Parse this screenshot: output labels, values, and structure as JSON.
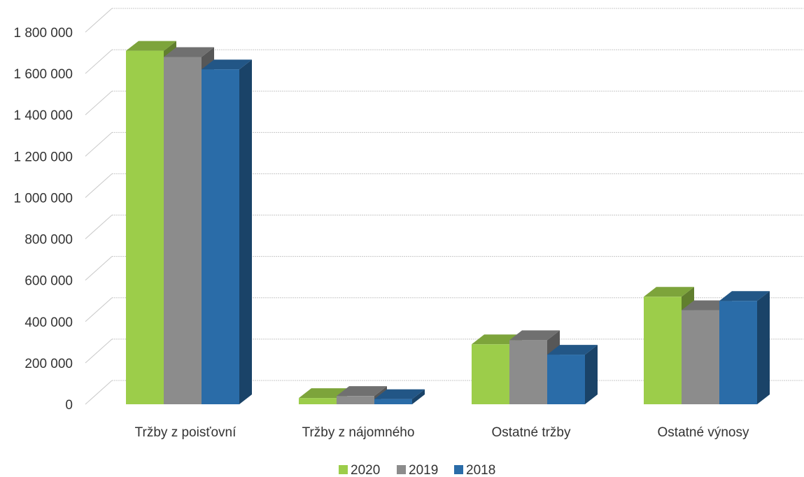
{
  "chart_data": {
    "type": "bar",
    "categories": [
      "Tržby z poisťovní",
      "Tržby z nájomného",
      "Ostatné tržby",
      "Ostatné výnosy"
    ],
    "series": [
      {
        "name": "2020",
        "color": "#9ccd4a",
        "values": [
          1710000,
          30000,
          290000,
          520000
        ]
      },
      {
        "name": "2019",
        "color": "#8c8c8c",
        "values": [
          1680000,
          40000,
          310000,
          455000
        ]
      },
      {
        "name": "2018",
        "color": "#2a6ca8",
        "values": [
          1620000,
          25000,
          240000,
          500000
        ]
      }
    ],
    "ylim": [
      0,
      1800000
    ],
    "yticks": [
      "0",
      "200 000",
      "400 000",
      "600 000",
      "800 000",
      "1 000 000",
      "1 200 000",
      "1 400 000",
      "1 600 000",
      "1 800 000"
    ],
    "legend_position": "bottom",
    "grid": true,
    "style": "3d-clustered-column"
  }
}
